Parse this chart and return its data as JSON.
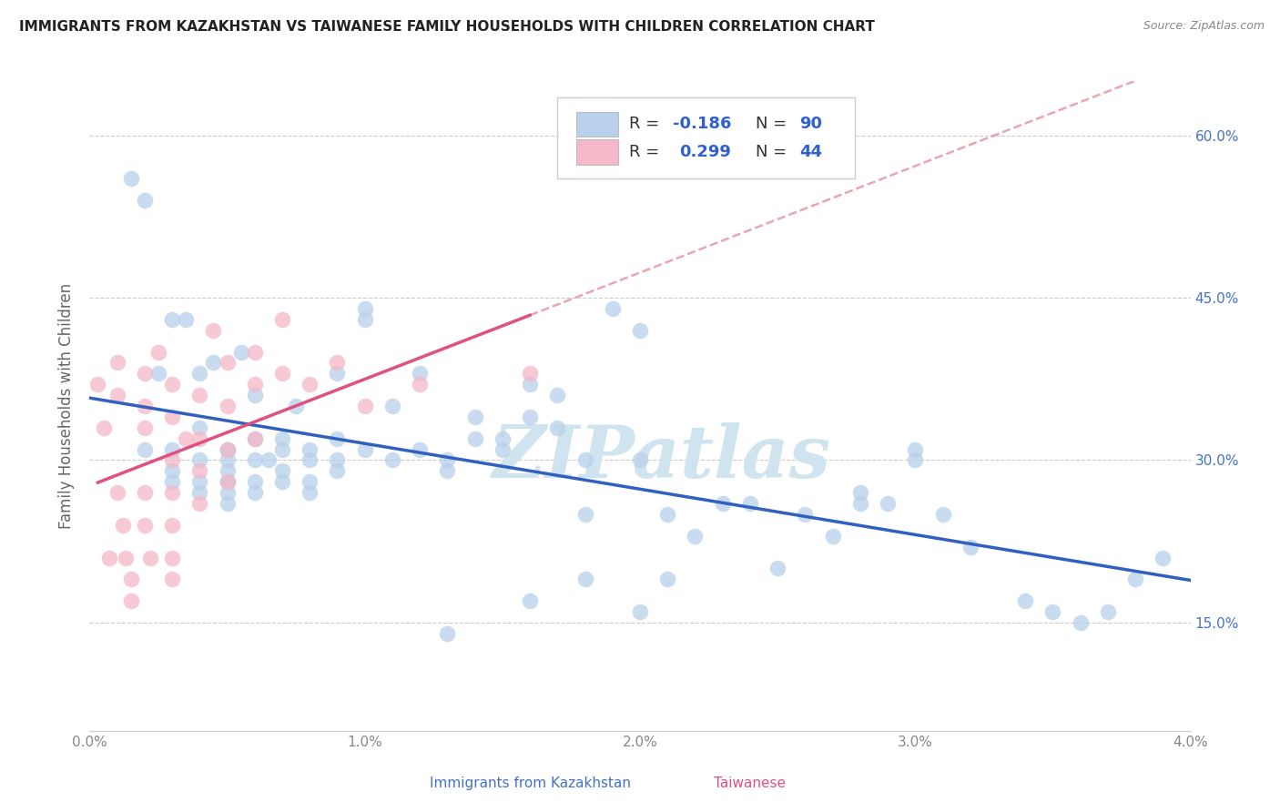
{
  "title": "IMMIGRANTS FROM KAZAKHSTAN VS TAIWANESE FAMILY HOUSEHOLDS WITH CHILDREN CORRELATION CHART",
  "source": "Source: ZipAtlas.com",
  "ylabel": "Family Households with Children",
  "x_label_blue": "Immigrants from Kazakhstan",
  "x_label_pink": "Taiwanese",
  "x_min": 0.0,
  "x_max": 0.04,
  "y_min": 0.05,
  "y_max": 0.65,
  "x_ticks": [
    0.0,
    0.01,
    0.02,
    0.03,
    0.04
  ],
  "x_tick_labels": [
    "0.0%",
    "1.0%",
    "2.0%",
    "3.0%",
    "4.0%"
  ],
  "y_ticks": [
    0.15,
    0.3,
    0.45,
    0.6
  ],
  "y_tick_labels": [
    "15.0%",
    "30.0%",
    "45.0%",
    "60.0%"
  ],
  "legend_R1": "-0.186",
  "legend_N1": "90",
  "legend_R2": "0.299",
  "legend_N2": "44",
  "blue_fill": "#b8d0ea",
  "pink_fill": "#f4b8c8",
  "blue_line_color": "#3060c0",
  "pink_line_color": "#e05080",
  "pink_dash_color": "#e08090",
  "watermark_color": "#d0e4f0",
  "blue_scatter_x": [
    0.0015,
    0.002,
    0.002,
    0.0025,
    0.003,
    0.003,
    0.003,
    0.003,
    0.0035,
    0.004,
    0.004,
    0.004,
    0.004,
    0.004,
    0.0045,
    0.005,
    0.005,
    0.005,
    0.005,
    0.005,
    0.005,
    0.005,
    0.005,
    0.0055,
    0.006,
    0.006,
    0.006,
    0.006,
    0.006,
    0.0065,
    0.007,
    0.007,
    0.007,
    0.007,
    0.0075,
    0.008,
    0.008,
    0.008,
    0.008,
    0.009,
    0.009,
    0.009,
    0.009,
    0.01,
    0.01,
    0.01,
    0.011,
    0.011,
    0.012,
    0.012,
    0.013,
    0.013,
    0.014,
    0.014,
    0.015,
    0.015,
    0.016,
    0.016,
    0.017,
    0.017,
    0.018,
    0.018,
    0.019,
    0.02,
    0.02,
    0.021,
    0.021,
    0.022,
    0.023,
    0.024,
    0.025,
    0.026,
    0.027,
    0.028,
    0.029,
    0.03,
    0.031,
    0.032,
    0.034,
    0.035,
    0.036,
    0.037,
    0.038,
    0.039,
    0.013,
    0.016,
    0.018,
    0.02,
    0.028,
    0.03
  ],
  "blue_scatter_y": [
    0.56,
    0.54,
    0.31,
    0.38,
    0.43,
    0.31,
    0.28,
    0.29,
    0.43,
    0.38,
    0.33,
    0.3,
    0.28,
    0.27,
    0.39,
    0.31,
    0.29,
    0.28,
    0.27,
    0.31,
    0.3,
    0.28,
    0.26,
    0.4,
    0.36,
    0.32,
    0.3,
    0.28,
    0.27,
    0.3,
    0.32,
    0.31,
    0.29,
    0.28,
    0.35,
    0.31,
    0.3,
    0.28,
    0.27,
    0.38,
    0.32,
    0.3,
    0.29,
    0.44,
    0.43,
    0.31,
    0.35,
    0.3,
    0.38,
    0.31,
    0.3,
    0.29,
    0.34,
    0.32,
    0.32,
    0.31,
    0.37,
    0.34,
    0.36,
    0.33,
    0.3,
    0.25,
    0.44,
    0.42,
    0.3,
    0.19,
    0.25,
    0.23,
    0.26,
    0.26,
    0.2,
    0.25,
    0.23,
    0.27,
    0.26,
    0.31,
    0.25,
    0.22,
    0.17,
    0.16,
    0.15,
    0.16,
    0.19,
    0.21,
    0.14,
    0.17,
    0.19,
    0.16,
    0.26,
    0.3
  ],
  "pink_scatter_x": [
    0.0003,
    0.0005,
    0.0007,
    0.001,
    0.001,
    0.001,
    0.0012,
    0.0013,
    0.0015,
    0.0015,
    0.002,
    0.002,
    0.002,
    0.002,
    0.002,
    0.0022,
    0.0025,
    0.003,
    0.003,
    0.003,
    0.003,
    0.003,
    0.003,
    0.003,
    0.0035,
    0.004,
    0.004,
    0.004,
    0.004,
    0.0045,
    0.005,
    0.005,
    0.005,
    0.005,
    0.006,
    0.006,
    0.006,
    0.007,
    0.007,
    0.008,
    0.009,
    0.01,
    0.012,
    0.016
  ],
  "pink_scatter_y": [
    0.37,
    0.33,
    0.21,
    0.39,
    0.36,
    0.27,
    0.24,
    0.21,
    0.19,
    0.17,
    0.38,
    0.35,
    0.33,
    0.27,
    0.24,
    0.21,
    0.4,
    0.37,
    0.34,
    0.3,
    0.27,
    0.24,
    0.21,
    0.19,
    0.32,
    0.36,
    0.32,
    0.29,
    0.26,
    0.42,
    0.39,
    0.35,
    0.31,
    0.28,
    0.4,
    0.37,
    0.32,
    0.43,
    0.38,
    0.37,
    0.39,
    0.35,
    0.37,
    0.38
  ]
}
